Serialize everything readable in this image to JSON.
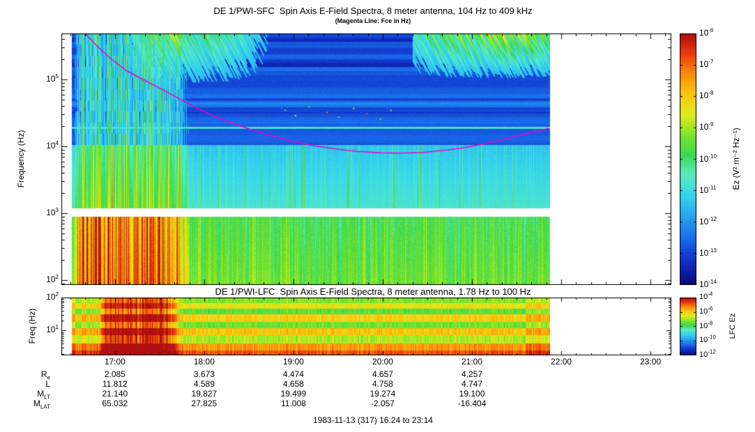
{
  "chart_data": [
    {
      "type": "heatmap",
      "instrument": "DE 1/PWI-SFC",
      "title": "DE 1/PWI-SFC  Spin Axis E-Field Spectra, 8 meter antenna, 104 Hz to 409 kHz",
      "subtitle": "(Magenta Line: Fce in Hz)",
      "ylabel": "Frequency (Hz)",
      "y_axis": {
        "scale": "log",
        "unit": "Hz",
        "min_hz": 104,
        "max_hz": 409000,
        "tick_exponents": [
          5,
          4,
          3,
          2
        ]
      },
      "x_axis": {
        "start": "16:24",
        "end": "23:14",
        "tick_labels": [
          "17:00",
          "18:00",
          "19:00",
          "20:00",
          "21:00",
          "22:00",
          "23:00"
        ],
        "data_end": "21:52"
      },
      "colorbar": {
        "label": "Ez (V² m⁻² Hz⁻¹)",
        "palette": "rainbow",
        "tick_exponents": [
          -6,
          -7,
          -8,
          -9,
          -10,
          -11,
          -12,
          -13,
          -14
        ],
        "top_color": "#af0f0f",
        "bottom_color": "#080876"
      },
      "fce_line": {
        "label": "Fce",
        "color": "#ee00cc",
        "points_min_logf": [
          [
            16,
            5.69
          ],
          [
            24,
            5.5
          ],
          [
            34,
            5.3
          ],
          [
            44,
            5.13
          ],
          [
            55,
            5.0
          ],
          [
            68,
            4.85
          ],
          [
            82,
            4.68
          ],
          [
            96,
            4.52
          ],
          [
            110,
            4.39
          ],
          [
            125,
            4.27
          ],
          [
            140,
            4.17
          ],
          [
            155,
            4.08
          ],
          [
            170,
            4.01
          ],
          [
            185,
            3.96
          ],
          [
            200,
            3.925
          ],
          [
            215,
            3.905
          ],
          [
            228,
            3.9
          ],
          [
            242,
            3.91
          ],
          [
            256,
            3.94
          ],
          [
            270,
            3.98
          ],
          [
            284,
            4.04
          ],
          [
            298,
            4.11
          ],
          [
            312,
            4.19
          ],
          [
            328,
            4.27
          ]
        ]
      }
    },
    {
      "type": "heatmap",
      "instrument": "DE 1/PWI-LFC",
      "title": "DE 1/PWI-LFC  Spin Axis E-Field Spectra, 8 meter antenna, 1.78 Hz to 100 Hz",
      "ylabel": "Freq (Hz)",
      "y_axis": {
        "scale": "log",
        "unit": "Hz",
        "min_hz": 1.78,
        "max_hz": 100,
        "tick_exponents": [
          2,
          1
        ]
      },
      "x_axis": {
        "start": "16:24",
        "end": "23:14",
        "tick_labels": [
          "17:00",
          "18:00",
          "19:00",
          "20:00",
          "21:00",
          "22:00",
          "23:00"
        ],
        "data_end": "21:52"
      },
      "colorbar": {
        "label": "LFC Ez",
        "palette": "rainbow",
        "tick_exponents": [
          -4,
          -6,
          -8,
          -10,
          -12
        ]
      }
    }
  ],
  "ephemeris": {
    "value_times": [
      "17:00",
      "18:00",
      "19:00",
      "20:00",
      "21:00"
    ],
    "rows": [
      {
        "label": {
          "base": "R",
          "sub": "e"
        },
        "values": [
          "2.085",
          "3.673",
          "4.474",
          "4.657",
          "4.257"
        ]
      },
      {
        "label": {
          "base": "L",
          "sub": ""
        },
        "values": [
          "11.812",
          "4.589",
          "4.658",
          "4.758",
          "4.747"
        ]
      },
      {
        "label": {
          "base": "M",
          "sub": "LT"
        },
        "values": [
          "21.140",
          "19.827",
          "19.499",
          "19.274",
          "19.100"
        ]
      },
      {
        "label": {
          "base": "M",
          "sub": "LAT"
        },
        "values": [
          "65.032",
          "27.825",
          "11.008",
          "-2.057",
          "-16.404"
        ]
      }
    ]
  },
  "footer": {
    "text": "1983-11-13 (317) 16:24 to 23:14"
  }
}
